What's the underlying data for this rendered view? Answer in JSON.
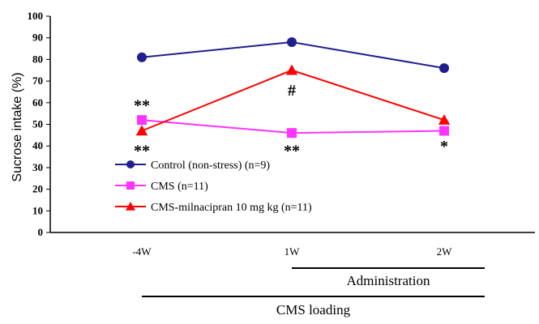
{
  "chart_data": {
    "type": "line",
    "ylabel": "Sucrose intake (%)",
    "xlabel": "",
    "ylim": [
      0,
      100
    ],
    "yticks": [
      "0",
      "10",
      "20",
      "30",
      "40",
      "50",
      "60",
      "70",
      "80",
      "90",
      "100"
    ],
    "categories": [
      "-4W",
      "1W",
      "2W"
    ],
    "grid": false,
    "legend_position": "bottom-left",
    "series": [
      {
        "name": "Control (non-stress) (n=9)",
        "values": [
          81,
          88,
          76
        ],
        "color": "#1f1f8f",
        "marker": "circle"
      },
      {
        "name": "CMS (n=11)",
        "values": [
          52,
          46,
          47
        ],
        "color": "#ff33ff",
        "marker": "square"
      },
      {
        "name": "CMS-milnacipran 10 mg kg (n=11)",
        "values": [
          47,
          75,
          52
        ],
        "color": "#ff0000",
        "marker": "triangle"
      }
    ],
    "annotations": [
      {
        "text": "**",
        "category": "-4W",
        "value": 59
      },
      {
        "text": "**",
        "category": "-4W",
        "value": 38
      },
      {
        "text": "**",
        "category": "1W",
        "value": 38
      },
      {
        "text": "#",
        "category": "1W",
        "value": 66
      },
      {
        "text": "*",
        "category": "2W",
        "value": 40
      }
    ],
    "periods": [
      {
        "label": "Administration",
        "from": "1W",
        "to": "2W"
      },
      {
        "label": "CMS loading",
        "from": "-4W",
        "to": "2W"
      }
    ]
  }
}
